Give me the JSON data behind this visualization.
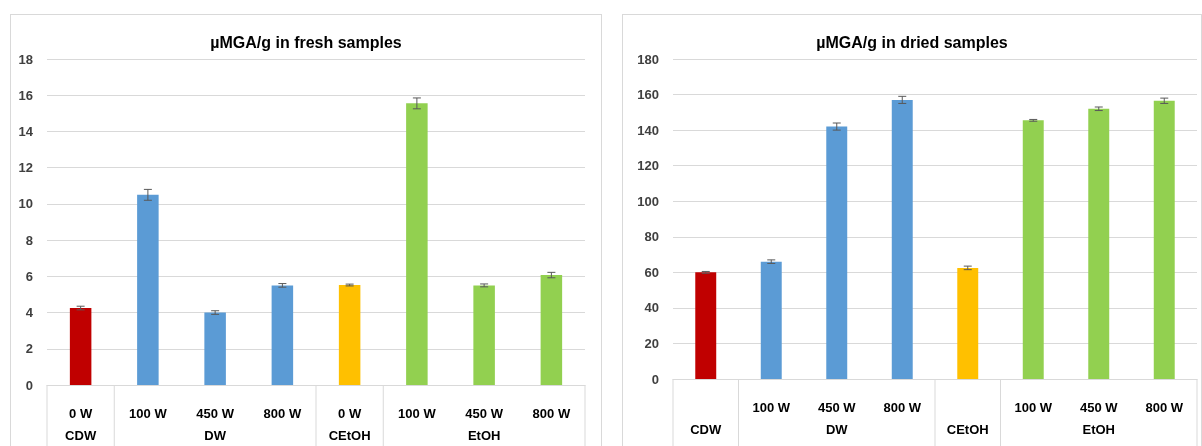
{
  "chart_data": [
    {
      "type": "bar",
      "title": "µMGA/g in fresh samples",
      "categories": [
        "0 W",
        "100 W",
        "450 W",
        "800 W",
        "0 W",
        "100 W",
        "450 W",
        "800 W"
      ],
      "values": [
        4.25,
        10.5,
        4.0,
        5.5,
        5.52,
        15.55,
        5.5,
        6.07
      ],
      "errors": [
        0.1,
        0.3,
        0.1,
        0.1,
        0.05,
        0.3,
        0.08,
        0.15
      ],
      "colors": [
        "#c00000",
        "#5b9bd5",
        "#5b9bd5",
        "#5b9bd5",
        "#ffc000",
        "#92d050",
        "#92d050",
        "#92d050"
      ],
      "annotations": [
        "CDW",
        "DW",
        "CEtOH",
        "EtOH"
      ],
      "ylim": [
        0,
        18
      ],
      "yticks": [
        0,
        2,
        4,
        6,
        8,
        10,
        12,
        14,
        16,
        18
      ],
      "grid": "y"
    },
    {
      "type": "bar",
      "title": "µMGA/g in dried samples",
      "categories": [
        null,
        "100 W",
        "450 W",
        "800 W",
        null,
        "100 W",
        "450 W",
        "800 W"
      ],
      "values": [
        60,
        66,
        142,
        157,
        62.5,
        145.5,
        152,
        156.5
      ],
      "errors": [
        0.5,
        1,
        2,
        2,
        1,
        0.5,
        1,
        1.5
      ],
      "colors": [
        "#c00000",
        "#5b9bd5",
        "#5b9bd5",
        "#5b9bd5",
        "#ffc000",
        "#92d050",
        "#92d050",
        "#92d050"
      ],
      "annotations": [
        "CDW",
        "DW",
        "CEtOH",
        "EtOH"
      ],
      "ylim": [
        0,
        180
      ],
      "yticks": [
        0,
        20,
        40,
        60,
        80,
        100,
        120,
        140,
        160,
        180
      ],
      "grid": "y"
    }
  ]
}
